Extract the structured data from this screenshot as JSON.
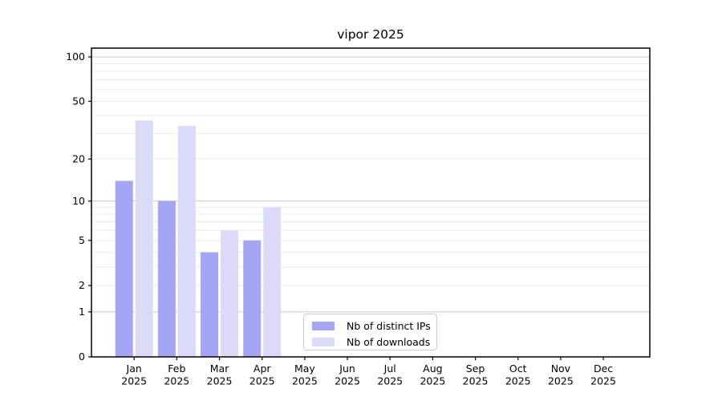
{
  "chart_data": {
    "type": "bar",
    "title": "vipor 2025",
    "categories": [
      "Jan 2025",
      "Feb 2025",
      "Mar 2025",
      "Apr 2025",
      "May 2025",
      "Jun 2025",
      "Jul 2025",
      "Aug 2025",
      "Sep 2025",
      "Oct 2025",
      "Nov 2025",
      "Dec 2025"
    ],
    "series": [
      {
        "name": "Nb of distinct IPs",
        "color": "#a5a5f5",
        "values": [
          14,
          10,
          4,
          5,
          0,
          0,
          0,
          0,
          0,
          0,
          0,
          0
        ]
      },
      {
        "name": "Nb of downloads",
        "color": "#dbdbf9",
        "values": [
          37,
          34,
          6,
          9,
          0,
          0,
          0,
          0,
          0,
          0,
          0,
          0
        ]
      }
    ],
    "y_axis": {
      "scale": "log10(1+y)",
      "tick_values": [
        0,
        1,
        2,
        5,
        10,
        20,
        50,
        100
      ],
      "major_gridlines": [
        1,
        10,
        100
      ],
      "minor_gridlines": [
        2,
        3,
        4,
        5,
        6,
        7,
        8,
        9,
        20,
        30,
        40,
        50,
        60,
        70,
        80,
        90
      ],
      "ylim": [
        0,
        115
      ],
      "grid": true
    },
    "x_axis": {
      "tick_labels_two_lines": true
    },
    "legend": {
      "position": "lower-center",
      "frame": true
    },
    "colors": {
      "major_grid": "#c9c9c9",
      "minor_grid": "#ebebeb",
      "axis_spine": "#000000",
      "tick_text": "#000000",
      "background": "#ffffff"
    }
  }
}
